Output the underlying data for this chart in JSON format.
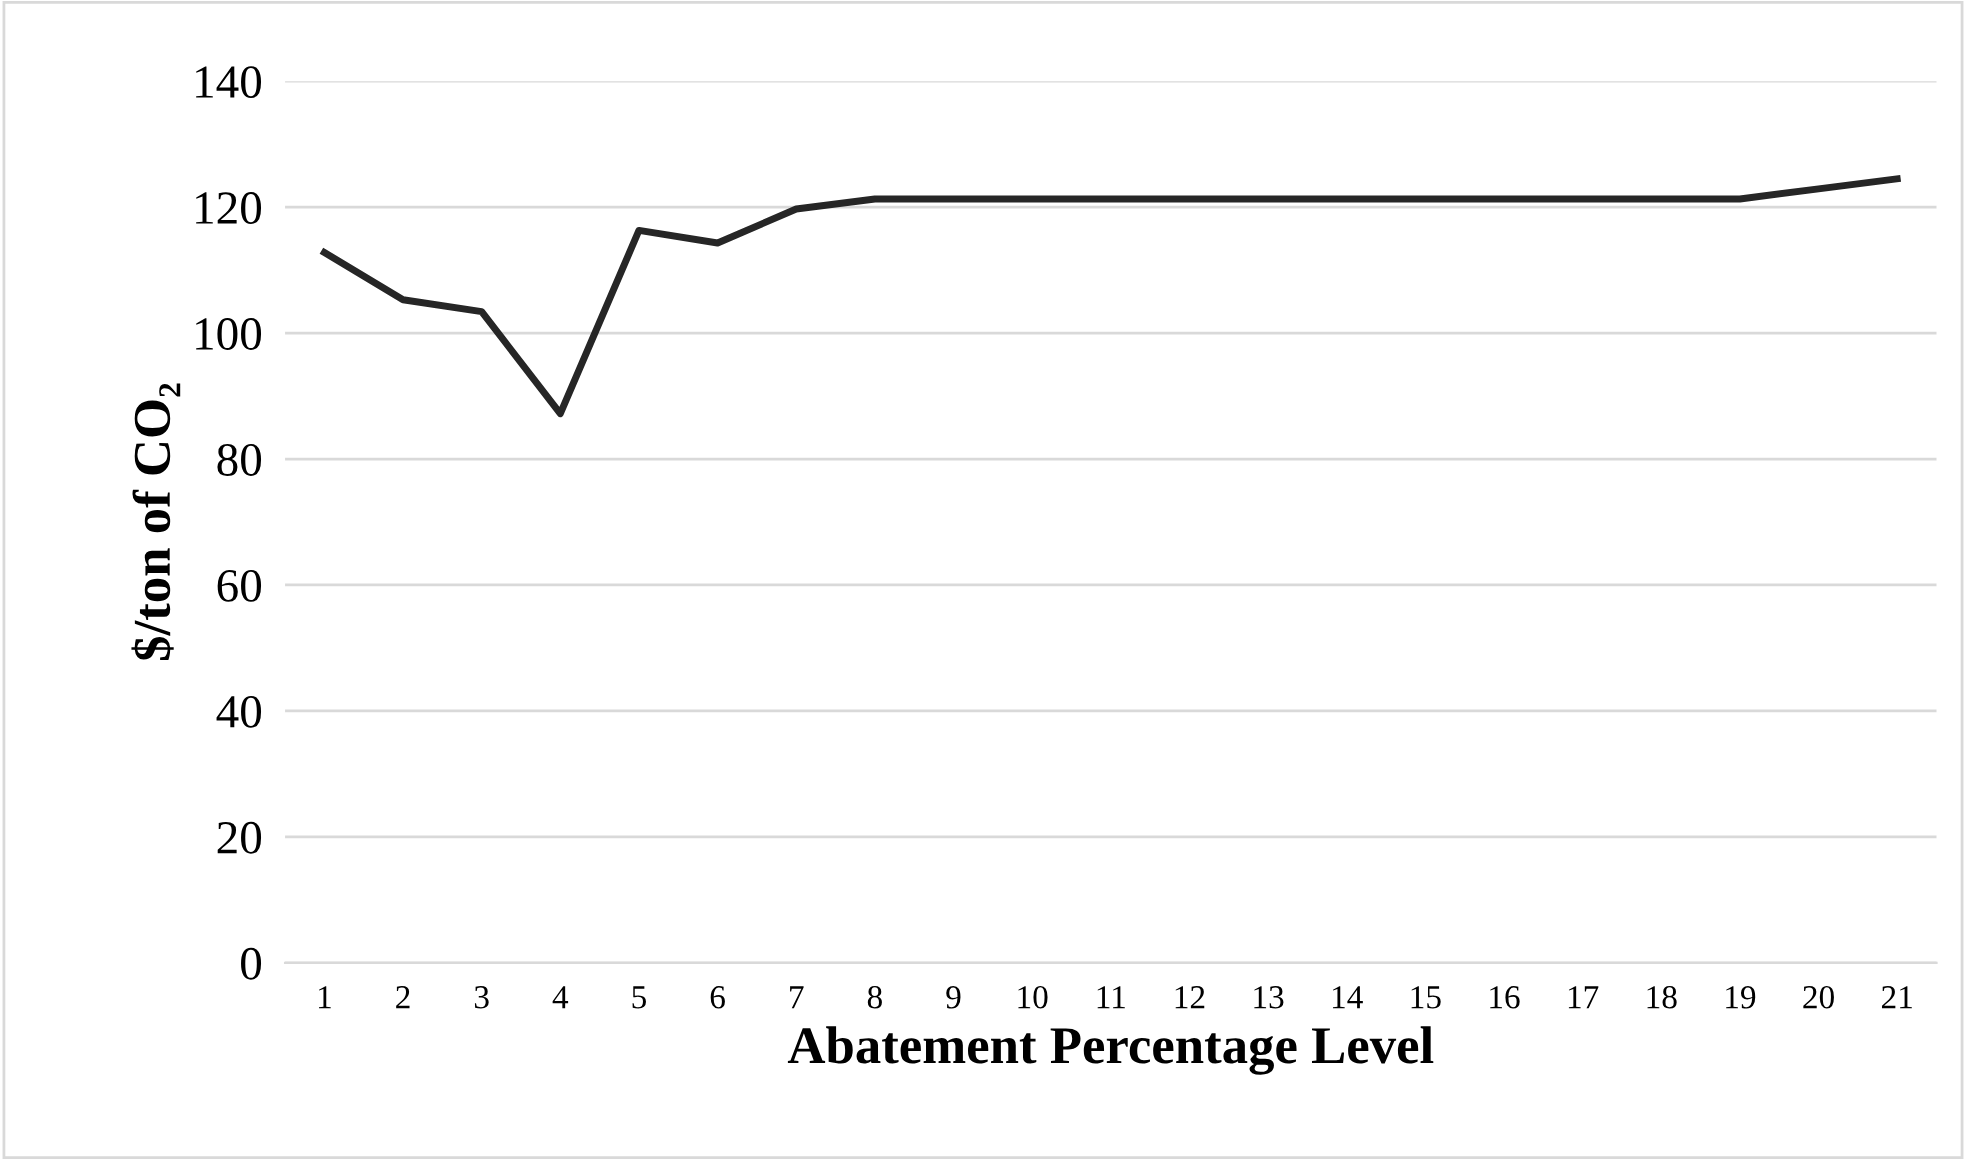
{
  "chart_data": {
    "type": "line",
    "xlabel": "Abatement Percentage Level",
    "ylabel": "$/ton of CO₂",
    "categories": [
      "1",
      "2",
      "3",
      "4",
      "5",
      "6",
      "7",
      "8",
      "9",
      "10",
      "11",
      "12",
      "13",
      "14",
      "15",
      "16",
      "17",
      "18",
      "19",
      "20",
      "21"
    ],
    "series": [
      {
        "color": "#262626",
        "values": [
          112.8,
          105.3,
          103.4,
          87.2,
          116.3,
          114.3,
          119.7,
          121.3,
          121.3,
          121.3,
          121.3,
          121.3,
          121.3,
          121.3,
          121.3,
          121.3,
          121.3,
          121.3,
          121.3,
          122.9,
          124.5
        ]
      }
    ],
    "ylim": [
      0,
      140
    ],
    "yticks": [
      0,
      20,
      40,
      60,
      80,
      100,
      120,
      140
    ],
    "grid": "y",
    "marker": "none",
    "line_style": "solid"
  }
}
